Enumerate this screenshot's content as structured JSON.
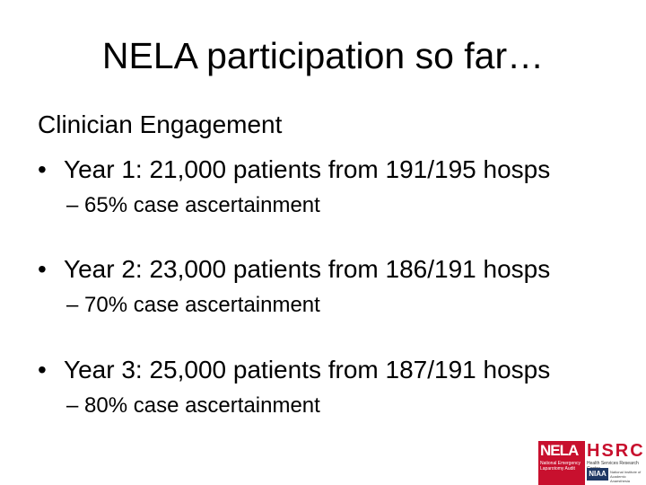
{
  "slide": {
    "title": "NELA participation so far…",
    "heading": "Clinician Engagement",
    "bullet_symbol": "•",
    "items": [
      {
        "text": "Year 1: 21,000 patients from 191/195 hosps",
        "sub": "– 65% case ascertainment"
      },
      {
        "text": "Year 2: 23,000 patients from 186/191 hosps",
        "sub": "– 70% case ascertainment"
      },
      {
        "text": "Year 3: 25,000 patients from 187/191 hosps",
        "sub": "– 80% case ascertainment"
      }
    ]
  },
  "logos": {
    "nela": {
      "name": "NELA",
      "subtitle": "National Emergency Laparotomy Audit"
    },
    "hsrc": {
      "name": "HSRC",
      "subtitle": "Health Services Research Centre",
      "niaa": "NIAA",
      "niaa_subtitle": "National Institute of Academic Anaesthesia"
    }
  },
  "colors": {
    "brand_red": "#c8102e",
    "niaa_blue": "#1f3864"
  }
}
